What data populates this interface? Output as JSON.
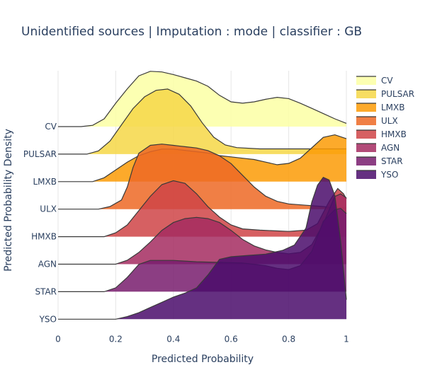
{
  "chart_data": {
    "type": "area",
    "title": "Unidentified sources | Imputation : mode | classifier : GB",
    "xlabel": "Predicted Probability",
    "ylabel": "Predicted Probability Density",
    "xlim": [
      0,
      1
    ],
    "x_ticks": [
      "0",
      "0.2",
      "0.4",
      "0.6",
      "0.8",
      "1"
    ],
    "legend_position": "top-right",
    "grid": true,
    "series": [
      {
        "name": "CV",
        "color": "#fcffa4",
        "points": [
          [
            0,
            0
          ],
          [
            0.08,
            0
          ],
          [
            0.12,
            0.02
          ],
          [
            0.16,
            0.12
          ],
          [
            0.2,
            0.36
          ],
          [
            0.24,
            0.58
          ],
          [
            0.28,
            0.78
          ],
          [
            0.32,
            0.85
          ],
          [
            0.36,
            0.84
          ],
          [
            0.4,
            0.8
          ],
          [
            0.44,
            0.75
          ],
          [
            0.48,
            0.7
          ],
          [
            0.52,
            0.62
          ],
          [
            0.56,
            0.48
          ],
          [
            0.6,
            0.38
          ],
          [
            0.64,
            0.36
          ],
          [
            0.68,
            0.38
          ],
          [
            0.72,
            0.42
          ],
          [
            0.76,
            0.45
          ],
          [
            0.8,
            0.43
          ],
          [
            0.84,
            0.36
          ],
          [
            0.88,
            0.28
          ],
          [
            0.92,
            0.2
          ],
          [
            0.96,
            0.12
          ],
          [
            1.0,
            0.05
          ]
        ]
      },
      {
        "name": "PULSAR",
        "color": "#f6d746",
        "points": [
          [
            0,
            0
          ],
          [
            0.1,
            0
          ],
          [
            0.14,
            0.05
          ],
          [
            0.18,
            0.2
          ],
          [
            0.22,
            0.45
          ],
          [
            0.26,
            0.7
          ],
          [
            0.3,
            0.88
          ],
          [
            0.34,
            0.98
          ],
          [
            0.38,
            1.0
          ],
          [
            0.42,
            0.92
          ],
          [
            0.46,
            0.74
          ],
          [
            0.5,
            0.48
          ],
          [
            0.54,
            0.26
          ],
          [
            0.58,
            0.14
          ],
          [
            0.62,
            0.1
          ],
          [
            0.7,
            0.08
          ],
          [
            0.8,
            0.08
          ],
          [
            0.9,
            0.08
          ],
          [
            1.0,
            0.08
          ]
        ]
      },
      {
        "name": "LMXB",
        "color": "#fb9b06",
        "points": [
          [
            0,
            0
          ],
          [
            0.12,
            0
          ],
          [
            0.16,
            0.06
          ],
          [
            0.2,
            0.18
          ],
          [
            0.24,
            0.3
          ],
          [
            0.28,
            0.4
          ],
          [
            0.32,
            0.46
          ],
          [
            0.36,
            0.5
          ],
          [
            0.4,
            0.5
          ],
          [
            0.44,
            0.48
          ],
          [
            0.48,
            0.46
          ],
          [
            0.52,
            0.44
          ],
          [
            0.56,
            0.4
          ],
          [
            0.6,
            0.38
          ],
          [
            0.64,
            0.36
          ],
          [
            0.68,
            0.34
          ],
          [
            0.72,
            0.3
          ],
          [
            0.76,
            0.26
          ],
          [
            0.8,
            0.28
          ],
          [
            0.84,
            0.36
          ],
          [
            0.88,
            0.52
          ],
          [
            0.92,
            0.68
          ],
          [
            0.96,
            0.72
          ],
          [
            1.0,
            0.66
          ]
        ]
      },
      {
        "name": "ULX",
        "color": "#ed6925",
        "points": [
          [
            0,
            0
          ],
          [
            0.14,
            0
          ],
          [
            0.18,
            0.04
          ],
          [
            0.22,
            0.14
          ],
          [
            0.24,
            0.34
          ],
          [
            0.26,
            0.64
          ],
          [
            0.28,
            0.86
          ],
          [
            0.32,
            0.98
          ],
          [
            0.36,
            1.0
          ],
          [
            0.4,
            0.98
          ],
          [
            0.44,
            0.96
          ],
          [
            0.48,
            0.94
          ],
          [
            0.52,
            0.9
          ],
          [
            0.56,
            0.82
          ],
          [
            0.6,
            0.7
          ],
          [
            0.64,
            0.52
          ],
          [
            0.68,
            0.34
          ],
          [
            0.72,
            0.2
          ],
          [
            0.76,
            0.12
          ],
          [
            0.8,
            0.08
          ],
          [
            0.86,
            0.06
          ],
          [
            0.92,
            0.04
          ],
          [
            0.96,
            0.02
          ],
          [
            1.0,
            0.02
          ]
        ]
      },
      {
        "name": "HMXB",
        "color": "#cf4446",
        "points": [
          [
            0,
            0
          ],
          [
            0.16,
            0
          ],
          [
            0.2,
            0.06
          ],
          [
            0.24,
            0.18
          ],
          [
            0.28,
            0.4
          ],
          [
            0.32,
            0.62
          ],
          [
            0.36,
            0.8
          ],
          [
            0.4,
            0.86
          ],
          [
            0.44,
            0.82
          ],
          [
            0.48,
            0.66
          ],
          [
            0.52,
            0.46
          ],
          [
            0.56,
            0.3
          ],
          [
            0.6,
            0.18
          ],
          [
            0.64,
            0.12
          ],
          [
            0.7,
            0.1
          ],
          [
            0.8,
            0.08
          ],
          [
            0.86,
            0.1
          ],
          [
            0.9,
            0.2
          ],
          [
            0.94,
            0.54
          ],
          [
            0.97,
            0.74
          ],
          [
            0.99,
            0.66
          ],
          [
            1.0,
            0.58
          ]
        ]
      },
      {
        "name": "AGN",
        "color": "#a52c60",
        "points": [
          [
            0,
            0
          ],
          [
            0.2,
            0
          ],
          [
            0.24,
            0.06
          ],
          [
            0.28,
            0.18
          ],
          [
            0.32,
            0.34
          ],
          [
            0.36,
            0.52
          ],
          [
            0.4,
            0.64
          ],
          [
            0.44,
            0.7
          ],
          [
            0.48,
            0.72
          ],
          [
            0.52,
            0.7
          ],
          [
            0.56,
            0.64
          ],
          [
            0.6,
            0.52
          ],
          [
            0.64,
            0.38
          ],
          [
            0.68,
            0.28
          ],
          [
            0.72,
            0.22
          ],
          [
            0.76,
            0.18
          ],
          [
            0.8,
            0.16
          ],
          [
            0.84,
            0.18
          ],
          [
            0.88,
            0.3
          ],
          [
            0.92,
            0.62
          ],
          [
            0.96,
            1.04
          ],
          [
            0.98,
            1.08
          ],
          [
            1.0,
            1.02
          ]
        ]
      },
      {
        "name": "STAR",
        "color": "#781c6d",
        "points": [
          [
            0,
            0
          ],
          [
            0.16,
            0
          ],
          [
            0.2,
            0.06
          ],
          [
            0.24,
            0.22
          ],
          [
            0.28,
            0.42
          ],
          [
            0.32,
            0.48
          ],
          [
            0.4,
            0.48
          ],
          [
            0.48,
            0.46
          ],
          [
            0.56,
            0.45
          ],
          [
            0.64,
            0.44
          ],
          [
            0.72,
            0.4
          ],
          [
            0.76,
            0.36
          ],
          [
            0.8,
            0.34
          ],
          [
            0.84,
            0.4
          ],
          [
            0.88,
            0.62
          ],
          [
            0.92,
            1.08
          ],
          [
            0.96,
            1.26
          ],
          [
            0.98,
            1.28
          ],
          [
            1.0,
            1.2
          ]
        ]
      },
      {
        "name": "YSO",
        "color": "#4a0c6b",
        "points": [
          [
            0,
            0
          ],
          [
            0.2,
            0
          ],
          [
            0.24,
            0.04
          ],
          [
            0.28,
            0.1
          ],
          [
            0.32,
            0.18
          ],
          [
            0.36,
            0.26
          ],
          [
            0.4,
            0.34
          ],
          [
            0.44,
            0.4
          ],
          [
            0.48,
            0.48
          ],
          [
            0.52,
            0.68
          ],
          [
            0.56,
            0.92
          ],
          [
            0.6,
            0.96
          ],
          [
            0.66,
            0.98
          ],
          [
            0.72,
            1.0
          ],
          [
            0.78,
            1.06
          ],
          [
            0.82,
            1.14
          ],
          [
            0.86,
            1.4
          ],
          [
            0.88,
            1.8
          ],
          [
            0.9,
            2.06
          ],
          [
            0.92,
            2.18
          ],
          [
            0.94,
            2.14
          ],
          [
            0.96,
            1.9
          ],
          [
            0.98,
            1.2
          ],
          [
            1.0,
            0.3
          ]
        ]
      }
    ]
  }
}
